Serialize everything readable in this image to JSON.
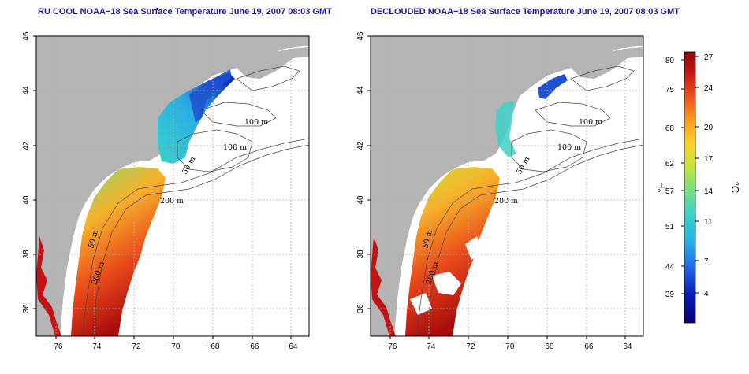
{
  "panels": [
    {
      "id": "left",
      "title": "RU COOL NOAA−18 Sea Surface Temperature June 19, 2007 08:03 GMT"
    },
    {
      "id": "right",
      "title": "DECLOUDED NOAA−18 Sea Surface Temperature June 19, 2007 08:03 GMT"
    }
  ],
  "axes": {
    "x_ticks": [
      "−76",
      "−74",
      "−72",
      "−70",
      "−68",
      "−66",
      "−64"
    ],
    "y_ticks": [
      "36",
      "38",
      "40",
      "42",
      "44",
      "46"
    ],
    "x_range": [
      -77.2,
      -62.8
    ],
    "y_range": [
      35.0,
      46.0
    ]
  },
  "contour_labels": {
    "left": [
      "100 m",
      "100 m",
      "50 m",
      "200 m",
      "50 m",
      "200 m"
    ],
    "right": [
      "100 m",
      "100 m",
      "50 m",
      "200 m",
      "50 m",
      "200 m"
    ]
  },
  "colorbar": {
    "fahrenheit_label": "°F",
    "celsius_label": "°C",
    "fahrenheit_ticks": [
      "80",
      "75",
      "68",
      "62",
      "57",
      "51",
      "44",
      "39"
    ],
    "celsius_ticks": [
      "27",
      "24",
      "20",
      "17",
      "14",
      "11",
      "7",
      "4"
    ],
    "celsius_range": [
      0,
      28
    ],
    "colors": [
      "#08006e",
      "#0a1ab4",
      "#1e64e6",
      "#2aaee6",
      "#3cd2c8",
      "#7ee07a",
      "#c8e23c",
      "#f8d22a",
      "#f89a1e",
      "#e8461a",
      "#c01414",
      "#8c0a0a"
    ]
  },
  "land_color": "#b4b4b4",
  "grid_color": "#b0b0b0"
}
